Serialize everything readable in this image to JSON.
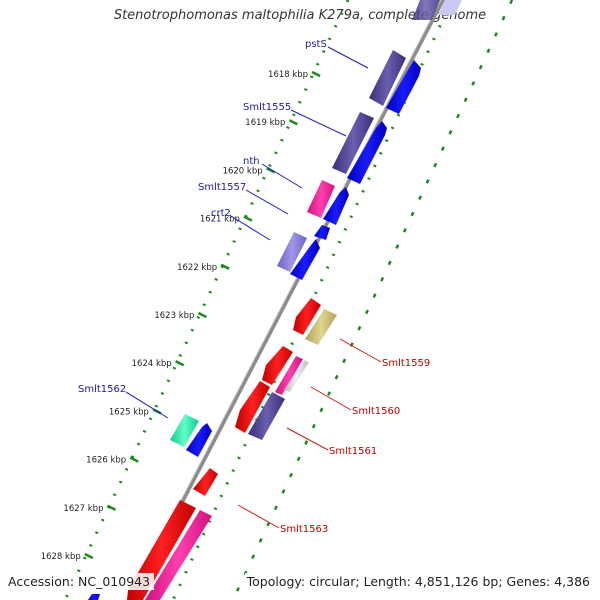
{
  "title": "Stenotrophomonas maltophilia K279a, complete genome",
  "footer": {
    "accession": "Accession: NC_010943",
    "topology": "Topology: circular; Length: 4,851,126 bp; Genes: 4,386"
  },
  "ticks": [
    "1618 kbp",
    "1619 kbp",
    "1620 kbp",
    "1621 kbp",
    "1622 kbp",
    "1623 kbp",
    "1624 kbp",
    "1625 kbp",
    "1626 kbp",
    "1627 kbp",
    "1628 kbp"
  ],
  "gene_labels": {
    "pstS": "pstS",
    "smlt1555": "Smlt1555",
    "nth": "nth",
    "smlt1557": "Smlt1557",
    "crt2": "crt2",
    "smlt1562": "Smlt1562",
    "smlt1559": "Smlt1559",
    "smlt1560": "Smlt1560",
    "smlt1561": "Smlt1561",
    "smlt1563": "Smlt1563"
  },
  "colors": {
    "backbone": "#8c8c8c",
    "cds_forward": "#0a0ae6",
    "cds_reverse": "#e60a0a",
    "slate": "#4a3f8f",
    "magenta": "#e6148c",
    "olive": "#c4b86a",
    "teal": "#14e0a0",
    "lavender": "#7a70d0",
    "gc_dots": "#1a8a1a"
  }
}
